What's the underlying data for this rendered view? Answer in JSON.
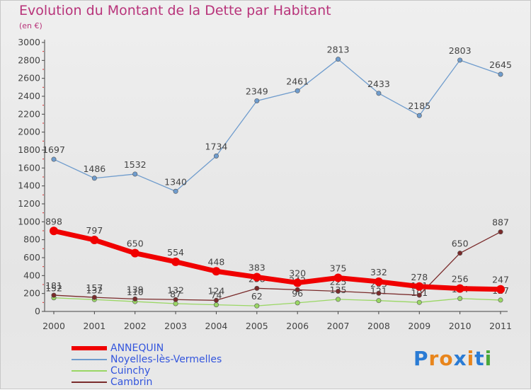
{
  "chart_data": {
    "type": "line",
    "title": "Evolution du Montant de la Dette par Habitant",
    "subtitle": "(en €)",
    "x": [
      "2000",
      "2001",
      "2002",
      "2003",
      "2004",
      "2005",
      "2006",
      "2007",
      "2008",
      "2009",
      "2010",
      "2011"
    ],
    "ylim": [
      0,
      3000
    ],
    "yticks": [
      0,
      200,
      400,
      600,
      800,
      1000,
      1200,
      1400,
      1600,
      1800,
      2000,
      2200,
      2400,
      2600,
      2800,
      3000
    ],
    "grid": false,
    "legend_position": "bottom-left",
    "series": [
      {
        "name": "Noyelles-lès-Vermelles",
        "color": "#6f9ccd",
        "values": [
          1697,
          1486,
          1532,
          1340,
          1734,
          2349,
          2461,
          2813,
          2433,
          2185,
          2803,
          2645
        ]
      },
      {
        "name": "Cuinchy",
        "color": "#9ad764",
        "values": [
          152,
          132,
          110,
          87,
          74,
          62,
          96,
          135,
          121,
          101,
          144,
          127
        ]
      },
      {
        "name": "Cambrin",
        "color": "#7a2b2b",
        "values": [
          181,
          157,
          139,
          132,
          124,
          258,
          242,
          225,
          203,
          181,
          650,
          887
        ]
      },
      {
        "name": "ANNEQUIN",
        "color": "#f00000",
        "values": [
          898,
          797,
          650,
          554,
          448,
          383,
          320,
          375,
          332,
          278,
          256,
          247
        ]
      }
    ]
  },
  "legend": {
    "items": [
      {
        "name": "ANNEQUIN",
        "color": "#f00000"
      },
      {
        "name": "Noyelles-lès-Vermelles",
        "color": "#6f9ccd"
      },
      {
        "name": "Cuinchy",
        "color": "#9ad764"
      },
      {
        "name": "Cambrin",
        "color": "#7a2b2b"
      }
    ]
  },
  "brand": {
    "text": "Proxiti",
    "letters": [
      "P",
      "r",
      "o",
      "x",
      "i",
      "t",
      "i"
    ],
    "colors": [
      "#2a7bd4",
      "#e8851c",
      "#e8851c",
      "#2a7bd4",
      "#e8851c",
      "#2a7bd4",
      "#4aa83a"
    ]
  }
}
